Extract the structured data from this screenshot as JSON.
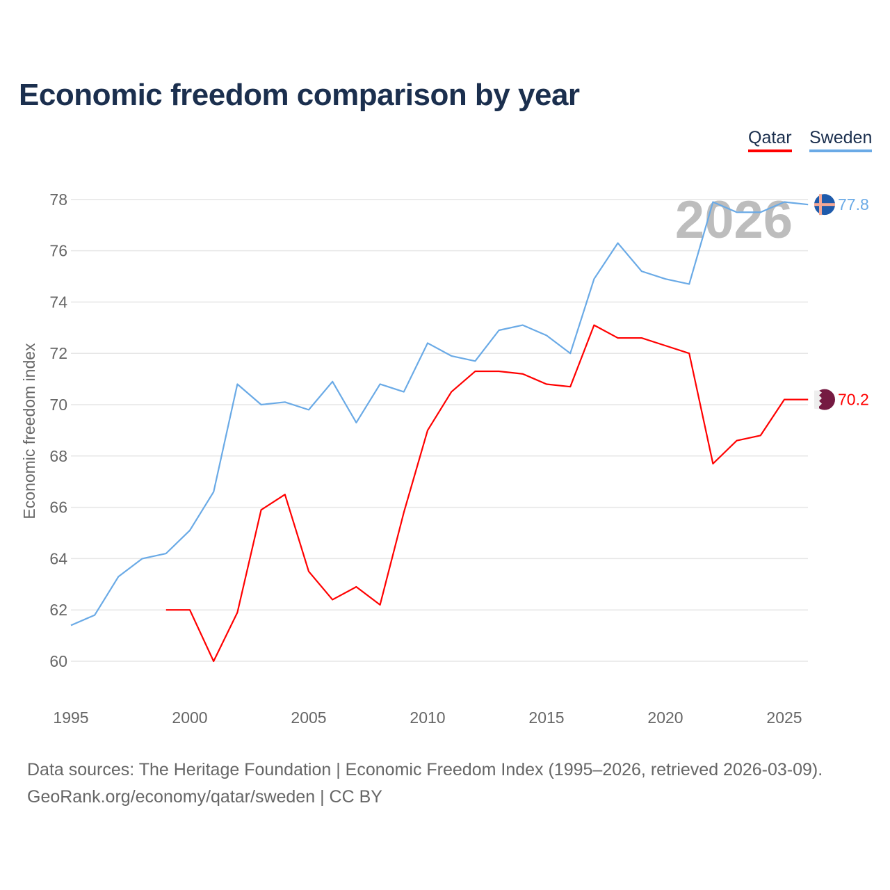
{
  "chart_data": {
    "type": "line",
    "title": "Economic freedom comparison by year",
    "xlabel": "",
    "ylabel": "Economic freedom index",
    "xlim": [
      1995,
      2026
    ],
    "ylim": [
      59,
      79
    ],
    "x_ticks": [
      1995,
      2000,
      2005,
      2010,
      2015,
      2020,
      2025
    ],
    "y_ticks": [
      60,
      62,
      64,
      66,
      68,
      70,
      72,
      74,
      76,
      78
    ],
    "grid": true,
    "legend_position": "top-right",
    "watermark_year": "2026",
    "series": [
      {
        "name": "Qatar",
        "color": "#ff0000",
        "end_label": "70.2",
        "x": [
          1999,
          2000,
          2001,
          2002,
          2003,
          2004,
          2005,
          2006,
          2007,
          2008,
          2009,
          2010,
          2011,
          2012,
          2013,
          2014,
          2015,
          2016,
          2017,
          2018,
          2019,
          2020,
          2021,
          2022,
          2023,
          2024,
          2025,
          2026
        ],
        "values": [
          62.0,
          62.0,
          60.0,
          61.9,
          65.9,
          66.5,
          63.5,
          62.4,
          62.9,
          62.2,
          65.8,
          69.0,
          70.5,
          71.3,
          71.3,
          71.2,
          70.8,
          70.7,
          73.1,
          72.6,
          72.6,
          72.3,
          72.0,
          67.7,
          68.6,
          68.8,
          70.2,
          70.2
        ]
      },
      {
        "name": "Sweden",
        "color": "#6aaae6",
        "end_label": "77.8",
        "x": [
          1995,
          1996,
          1997,
          1998,
          1999,
          2000,
          2001,
          2002,
          2003,
          2004,
          2005,
          2006,
          2007,
          2008,
          2009,
          2010,
          2011,
          2012,
          2013,
          2014,
          2015,
          2016,
          2017,
          2018,
          2019,
          2020,
          2021,
          2022,
          2023,
          2024,
          2025,
          2026
        ],
        "values": [
          61.4,
          61.8,
          63.3,
          64.0,
          64.2,
          65.1,
          66.6,
          70.8,
          70.0,
          70.1,
          69.8,
          70.9,
          69.3,
          70.8,
          70.5,
          72.4,
          71.9,
          71.7,
          72.9,
          73.1,
          72.7,
          72.0,
          74.9,
          76.3,
          75.2,
          74.9,
          74.7,
          77.9,
          77.5,
          77.5,
          77.9,
          77.8
        ]
      }
    ]
  },
  "footer": {
    "line1": "Data sources: The Heritage Foundation | Economic Freedom Index (1995–2026, retrieved 2026-03-09).",
    "line2": "GeoRank.org/economy/qatar/sweden | CC BY"
  }
}
